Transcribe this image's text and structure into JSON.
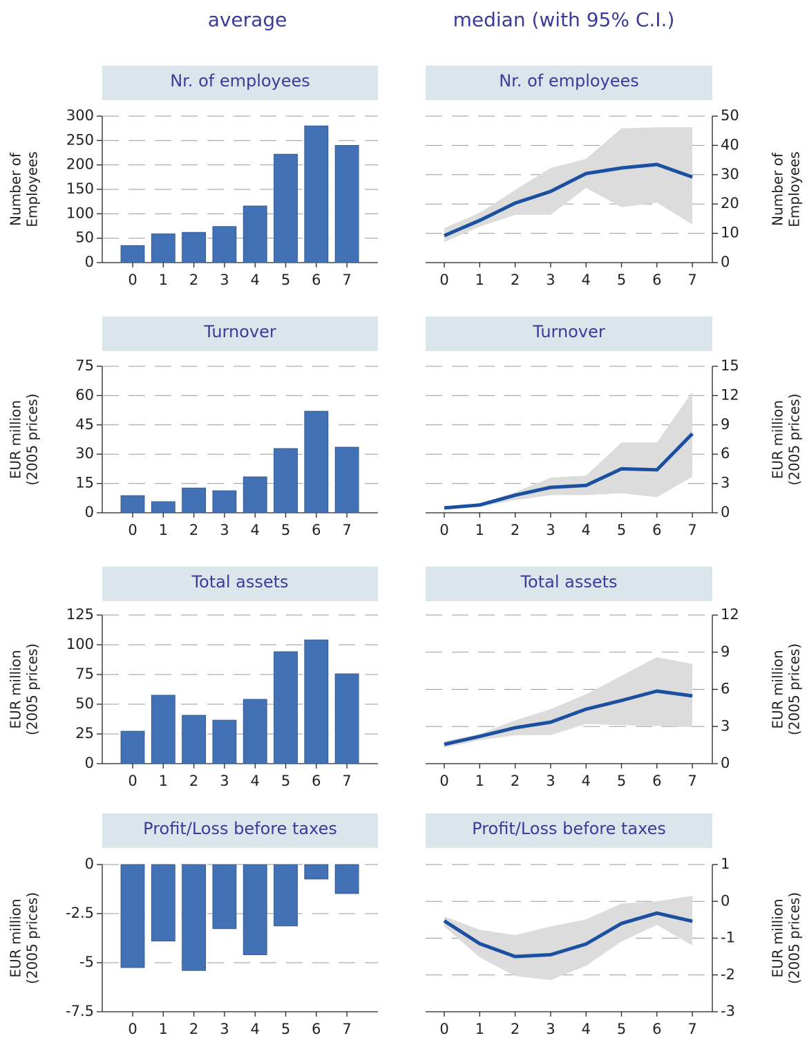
{
  "column_titles": [
    "average",
    "median (with 95% C.I.)"
  ],
  "chart_data": [
    {
      "type": "bar",
      "title": "Nr. of employees",
      "ylabel": [
        "Number of",
        "Employees"
      ],
      "y_axis_side": "left",
      "categories": [
        "0",
        "1",
        "2",
        "3",
        "4",
        "5",
        "6",
        "7"
      ],
      "values": [
        35,
        59,
        62,
        74,
        116,
        222,
        280,
        240
      ],
      "color": "#4371b5",
      "ylim": [
        0,
        300
      ],
      "yticks": [
        0,
        50,
        100,
        150,
        200,
        250,
        300
      ],
      "grid": true
    },
    {
      "type": "line",
      "title": "Nr. of employees",
      "ylabel": [
        "Number of",
        "Employees"
      ],
      "y_axis_side": "right",
      "categories": [
        "0",
        "1",
        "2",
        "3",
        "4",
        "5",
        "6",
        "7"
      ],
      "values": [
        9.2,
        14.4,
        20.3,
        24.3,
        30.4,
        32.3,
        33.5,
        29.2
      ],
      "ci_lower": [
        7,
        12.3,
        16.3,
        16.3,
        25.5,
        18.9,
        20.5,
        13
      ],
      "ci_upper": [
        11.8,
        17,
        24.8,
        32.3,
        35.4,
        45.8,
        46.2,
        46.2
      ],
      "color": "#1b4f9f",
      "band_color": "#dcdcdc",
      "ylim": [
        0,
        50
      ],
      "yticks": [
        0,
        10,
        20,
        30,
        40,
        50
      ],
      "grid": true
    },
    {
      "type": "bar",
      "title": "Turnover",
      "ylabel": [
        "EUR million",
        "(2005 prices)"
      ],
      "y_axis_side": "left",
      "categories": [
        "0",
        "1",
        "2",
        "3",
        "4",
        "5",
        "6",
        "7"
      ],
      "values": [
        8.8,
        5.7,
        12.7,
        11.3,
        18.4,
        32.9,
        52,
        33.6
      ],
      "color": "#4371b5",
      "ylim": [
        0,
        75
      ],
      "yticks": [
        0,
        15,
        30,
        45,
        60,
        75
      ],
      "grid": true
    },
    {
      "type": "line",
      "title": "Turnover",
      "ylabel": [
        "EUR million",
        "(2005 prices)"
      ],
      "y_axis_side": "right",
      "categories": [
        "0",
        "1",
        "2",
        "3",
        "4",
        "5",
        "6",
        "7"
      ],
      "values": [
        0.5,
        0.8,
        1.8,
        2.6,
        2.8,
        4.5,
        4.4,
        8.1
      ],
      "ci_lower": [
        0.3,
        0.6,
        1.3,
        1.8,
        1.8,
        2.0,
        1.6,
        3.7
      ],
      "ci_upper": [
        0.7,
        0.9,
        2.1,
        3.6,
        3.8,
        7.2,
        7.2,
        12.4
      ],
      "color": "#1b4f9f",
      "band_color": "#dcdcdc",
      "ylim": [
        0,
        15
      ],
      "yticks": [
        0,
        3,
        6,
        9,
        12,
        15
      ],
      "grid": true
    },
    {
      "type": "bar",
      "title": "Total assets",
      "ylabel": [
        "EUR million",
        "(2005 prices)"
      ],
      "y_axis_side": "left",
      "categories": [
        "0",
        "1",
        "2",
        "3",
        "4",
        "5",
        "6",
        "7"
      ],
      "values": [
        27.3,
        57.6,
        40.7,
        36.6,
        54.1,
        94.2,
        104.1,
        75.6
      ],
      "color": "#4371b5",
      "ylim": [
        0,
        125
      ],
      "yticks": [
        0,
        25,
        50,
        75,
        100,
        125
      ],
      "grid": true
    },
    {
      "type": "line",
      "title": "Total assets",
      "ylabel": [
        "EUR million",
        "(2005 prices)"
      ],
      "y_axis_side": "right",
      "categories": [
        "0",
        "1",
        "2",
        "3",
        "4",
        "5",
        "6",
        "7"
      ],
      "values": [
        1.56,
        2.2,
        2.9,
        3.35,
        4.4,
        5.1,
        5.86,
        5.47
      ],
      "ci_lower": [
        1.3,
        1.9,
        2.3,
        2.3,
        3.2,
        3.1,
        3.05,
        2.95
      ],
      "ci_upper": [
        1.8,
        2.4,
        3.5,
        4.4,
        5.6,
        7.1,
        8.6,
        8.05
      ],
      "color": "#1b4f9f",
      "band_color": "#dcdcdc",
      "ylim": [
        0,
        12
      ],
      "yticks": [
        0,
        3,
        6,
        9,
        12
      ],
      "grid": true
    },
    {
      "type": "bar",
      "title": "Profit/Loss before taxes",
      "ylabel": [
        "EUR million",
        "(2005 prices)"
      ],
      "y_axis_side": "left",
      "categories": [
        "0",
        "1",
        "2",
        "3",
        "4",
        "5",
        "6",
        "7"
      ],
      "values": [
        -5.25,
        -3.9,
        -5.4,
        -3.27,
        -4.6,
        -3.13,
        -0.74,
        -1.48
      ],
      "color": "#4371b5",
      "ylim": [
        -7.5,
        0
      ],
      "yticks": [
        -7.5,
        -5,
        -2.5,
        0
      ],
      "grid": true
    },
    {
      "type": "line",
      "title": "Profit/Loss before taxes",
      "ylabel": [
        "EUR million",
        "(2005 prices)"
      ],
      "y_axis_side": "right",
      "categories": [
        "0",
        "1",
        "2",
        "3",
        "4",
        "5",
        "6",
        "7"
      ],
      "values": [
        -0.53,
        -1.15,
        -1.5,
        -1.45,
        -1.16,
        -0.6,
        -0.32,
        -0.54
      ],
      "ci_lower": [
        -0.68,
        -1.52,
        -2.03,
        -2.14,
        -1.75,
        -1.09,
        -0.64,
        -1.2
      ],
      "ci_upper": [
        -0.41,
        -0.77,
        -0.92,
        -0.68,
        -0.49,
        -0.06,
        0,
        0.15
      ],
      "color": "#1b4f9f",
      "band_color": "#dcdcdc",
      "ylim": [
        -3,
        1
      ],
      "yticks": [
        -3,
        -2,
        -1,
        0,
        1
      ],
      "grid": true
    }
  ]
}
